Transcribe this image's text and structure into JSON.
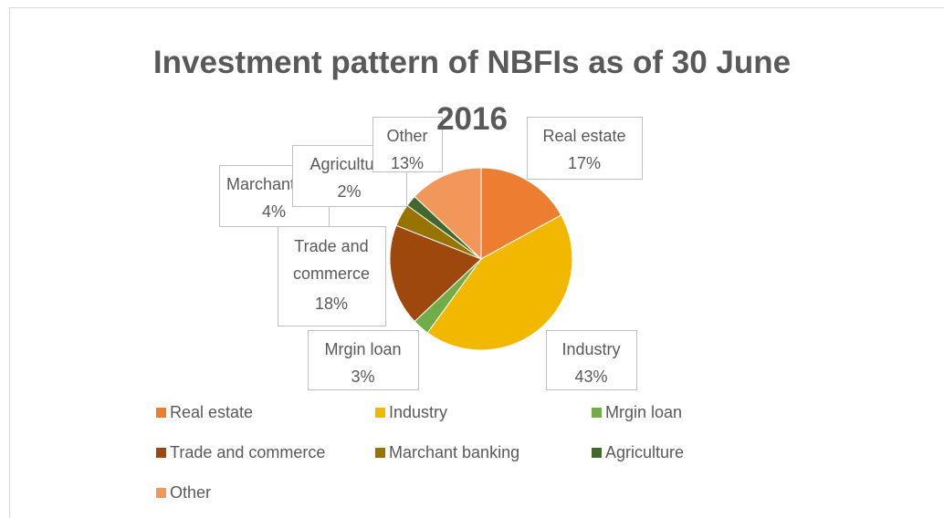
{
  "chart_data": {
    "type": "pie",
    "title": "Investment pattern of NBFIs as of 30 June 2016",
    "categories": [
      "Real estate",
      "Industry",
      "Mrgin loan",
      "Trade and commerce",
      "Marchant banking",
      "Agriculture",
      "Other"
    ],
    "values": [
      17,
      43,
      3,
      18,
      4,
      2,
      13
    ],
    "value_labels": [
      "17%",
      "43%",
      "3%",
      "18%",
      "4%",
      "2%",
      "13%"
    ],
    "colors": [
      "#ED7D31",
      "#F2B800",
      "#70AD47",
      "#9E480E",
      "#997300",
      "#43682B",
      "#F1975A"
    ],
    "legend": "bottom"
  }
}
